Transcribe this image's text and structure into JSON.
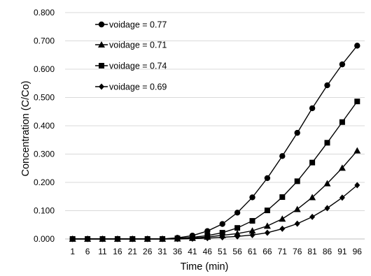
{
  "chart_data": {
    "type": "line",
    "title": "",
    "xlabel": "Time (min)",
    "ylabel": "Concentration (C/Co)",
    "ylim": [
      0,
      0.8
    ],
    "y_ticks": [
      "0.000",
      "0.100",
      "0.200",
      "0.300",
      "0.400",
      "0.500",
      "0.600",
      "0.700",
      "0.800"
    ],
    "x": [
      1,
      6,
      11,
      16,
      21,
      26,
      31,
      36,
      41,
      46,
      51,
      56,
      61,
      66,
      71,
      76,
      81,
      86,
      91,
      96
    ],
    "grid": "horizontal",
    "legend": "top-left",
    "series": [
      {
        "name": "voidage = 0.77",
        "marker": "circle",
        "values": [
          0,
          0,
          0,
          0,
          0,
          0,
          0,
          0.004,
          0.012,
          0.028,
          0.053,
          0.093,
          0.147,
          0.215,
          0.293,
          0.375,
          0.462,
          0.543,
          0.617,
          0.683
        ]
      },
      {
        "name": "voidage = 0.71",
        "marker": "triangle",
        "values": [
          0,
          0,
          0,
          0,
          0,
          0,
          0,
          0.001,
          0.003,
          0.007,
          0.013,
          0.019,
          0.029,
          0.046,
          0.071,
          0.105,
          0.147,
          0.196,
          0.251,
          0.312
        ]
      },
      {
        "name": "voidage = 0.74",
        "marker": "square",
        "values": [
          0,
          0,
          0,
          0,
          0,
          0,
          0,
          0.002,
          0.006,
          0.012,
          0.022,
          0.039,
          0.064,
          0.101,
          0.148,
          0.204,
          0.27,
          0.34,
          0.413,
          0.486
        ]
      },
      {
        "name": "voidage = 0.69",
        "marker": "diamond",
        "values": [
          0,
          0,
          0,
          0,
          0,
          0,
          0,
          0,
          0.001,
          0.003,
          0.006,
          0.009,
          0.014,
          0.022,
          0.036,
          0.054,
          0.078,
          0.109,
          0.146,
          0.19
        ]
      }
    ]
  }
}
